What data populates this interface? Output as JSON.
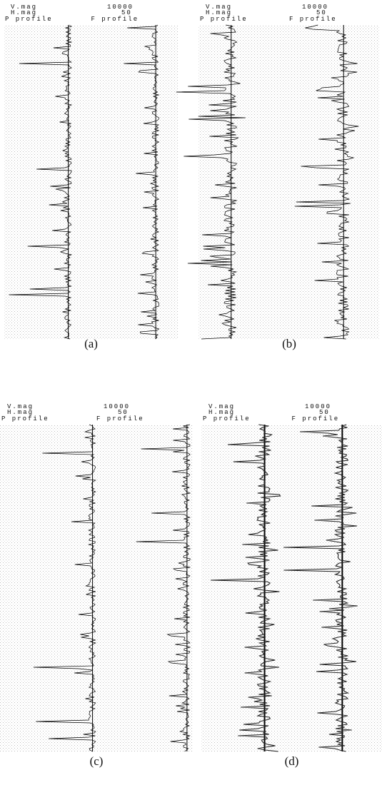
{
  "panels": [
    {
      "v_mag_label": "V.mag",
      "v_mag": 10000,
      "h_mag_label": "H.mag",
      "h_mag": 50,
      "p_label": "P profile",
      "f_label": "F profile",
      "caption": "(a)"
    },
    {
      "v_mag_label": "V.mag",
      "v_mag": 10000,
      "h_mag_label": "H.mag",
      "h_mag": 50,
      "p_label": "P profile",
      "f_label": "F profile",
      "caption": "(b)"
    },
    {
      "v_mag_label": "V.mag",
      "v_mag": 10000,
      "h_mag_label": "H.mag",
      "h_mag": 50,
      "p_label": "P profile",
      "f_label": "F profile",
      "caption": "(c)"
    },
    {
      "v_mag_label": "V.mag",
      "v_mag": 10000,
      "h_mag_label": "H.mag",
      "h_mag": 50,
      "p_label": "P profile",
      "f_label": "F profile",
      "caption": "(d)"
    }
  ]
}
